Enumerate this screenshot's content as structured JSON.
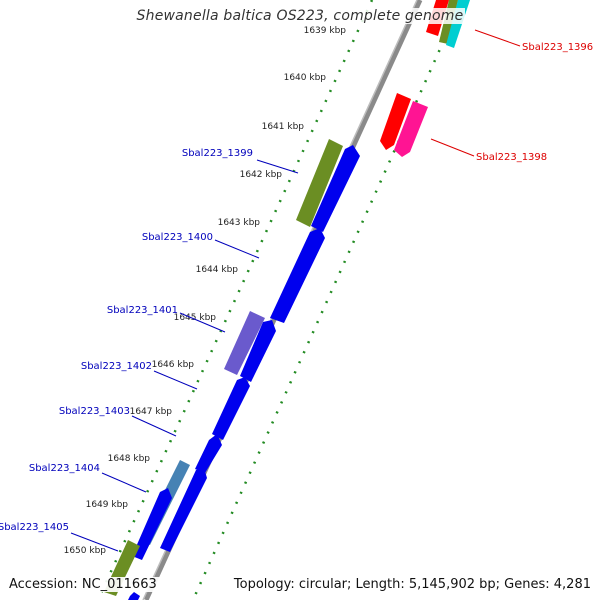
{
  "title": "Shewanella baltica OS223, complete genome",
  "accession": "Accession: NC_011663",
  "topology": "Topology: circular; Length: 5,145,902 bp; Genes: 4,281",
  "ticks": [
    {
      "label": "1639 kbp",
      "value": 1639
    },
    {
      "label": "1640 kbp",
      "value": 1640
    },
    {
      "label": "1641 kbp",
      "value": 1641
    },
    {
      "label": "1642 kbp",
      "value": 1642
    },
    {
      "label": "1643 kbp",
      "value": 1643
    },
    {
      "label": "1644 kbp",
      "value": 1644
    },
    {
      "label": "1645 kbp",
      "value": 1645
    },
    {
      "label": "1646 kbp",
      "value": 1646
    },
    {
      "label": "1647 kbp",
      "value": 1647
    },
    {
      "label": "1648 kbp",
      "value": 1648
    },
    {
      "label": "1649 kbp",
      "value": 1649
    },
    {
      "label": "1650 kbp",
      "value": 1650
    }
  ],
  "gene_labels": [
    {
      "text": "Sbal223_1396",
      "side": "right",
      "color": "#dd0000"
    },
    {
      "text": "Sbal223_1398",
      "side": "right",
      "color": "#dd0000"
    },
    {
      "text": "Sbal223_1399",
      "side": "left",
      "color": "#0000bb"
    },
    {
      "text": "Sbal223_1400",
      "side": "left",
      "color": "#0000bb"
    },
    {
      "text": "Sbal223_1401",
      "side": "left",
      "color": "#0000bb"
    },
    {
      "text": "Sbal223_1402",
      "side": "left",
      "color": "#0000bb"
    },
    {
      "text": "Sbal223_1403",
      "side": "left",
      "color": "#0000bb"
    },
    {
      "text": "Sbal223_1404",
      "side": "left",
      "color": "#0000bb"
    },
    {
      "text": "Sbal223_1405",
      "side": "left",
      "color": "#0000bb"
    }
  ],
  "colors": {
    "backbone": "#808080",
    "dots": "#228b22",
    "blue_gene": "#0000ee",
    "olive_gene": "#6b8e23",
    "purple_gene": "#6a5acd",
    "steel_gene": "#4682b4",
    "red_gene": "#ff0000",
    "pink_gene": "#ff1493",
    "cyan_gene": "#00ced1"
  }
}
